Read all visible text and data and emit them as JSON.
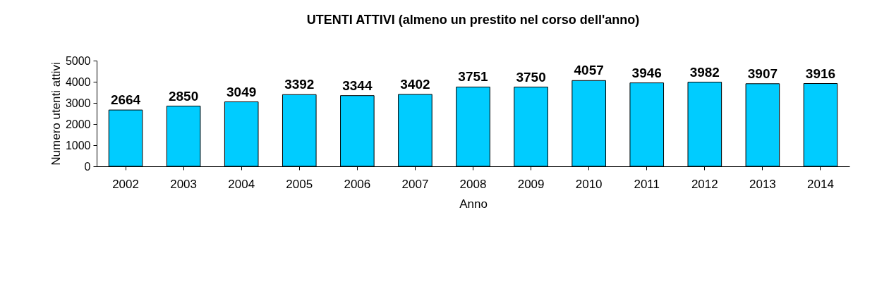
{
  "chart_data": {
    "type": "bar",
    "title": "UTENTI ATTIVI (almeno un prestito nel corso dell'anno)",
    "xlabel": "Anno",
    "ylabel": "Numero utenti attivi",
    "categories": [
      "2002",
      "2003",
      "2004",
      "2005",
      "2006",
      "2007",
      "2008",
      "2009",
      "2010",
      "2011",
      "2012",
      "2013",
      "2014"
    ],
    "values": [
      2664,
      2850,
      3049,
      3392,
      3344,
      3402,
      3751,
      3750,
      4057,
      3946,
      3982,
      3907,
      3916
    ],
    "color": "#00ccff",
    "ylim": [
      0,
      5000
    ],
    "yticks": [
      0,
      1000,
      2000,
      3000,
      4000,
      5000
    ],
    "grid": false,
    "data_labels": true
  }
}
